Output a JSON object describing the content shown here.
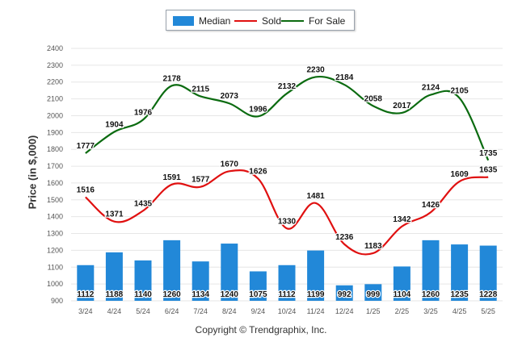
{
  "legend": {
    "median": "Median",
    "sold": "Sold",
    "for_sale": "For Sale"
  },
  "colors": {
    "median": "#2288d8",
    "sold": "#e01010",
    "for_sale": "#0b6b10",
    "grid": "#e6e6e6",
    "axis_text": "#555555"
  },
  "footer": {
    "copyright": "Copyright © Trendgraphix, Inc."
  },
  "chart_data": {
    "type": "bar",
    "ylabel": "Price (in $,000)",
    "xlabel": "",
    "ylim": [
      900,
      2400
    ],
    "yticks": [
      900,
      1000,
      1100,
      1200,
      1300,
      1400,
      1500,
      1600,
      1700,
      1800,
      1900,
      2000,
      2100,
      2200,
      2300,
      2400
    ],
    "grid": true,
    "legend_position": "top",
    "categories": [
      "3/24",
      "4/24",
      "5/24",
      "6/24",
      "7/24",
      "8/24",
      "9/24",
      "10/24",
      "11/24",
      "12/24",
      "1/25",
      "2/25",
      "3/25",
      "4/25",
      "5/25"
    ],
    "series": [
      {
        "name": "Median",
        "type": "bar",
        "values": [
          1112,
          1188,
          1140,
          1260,
          1134,
          1240,
          1075,
          1112,
          1199,
          992,
          999,
          1104,
          1260,
          1235,
          1228
        ]
      },
      {
        "name": "Sold",
        "type": "line",
        "values": [
          1516,
          1371,
          1435,
          1591,
          1577,
          1670,
          1626,
          1330,
          1481,
          1236,
          1183,
          1342,
          1426,
          1609,
          1635
        ]
      },
      {
        "name": "For Sale",
        "type": "line",
        "values": [
          1777,
          1904,
          1976,
          2178,
          2115,
          2073,
          1996,
          2132,
          2230,
          2184,
          2058,
          2017,
          2124,
          2105,
          1735
        ]
      }
    ]
  }
}
